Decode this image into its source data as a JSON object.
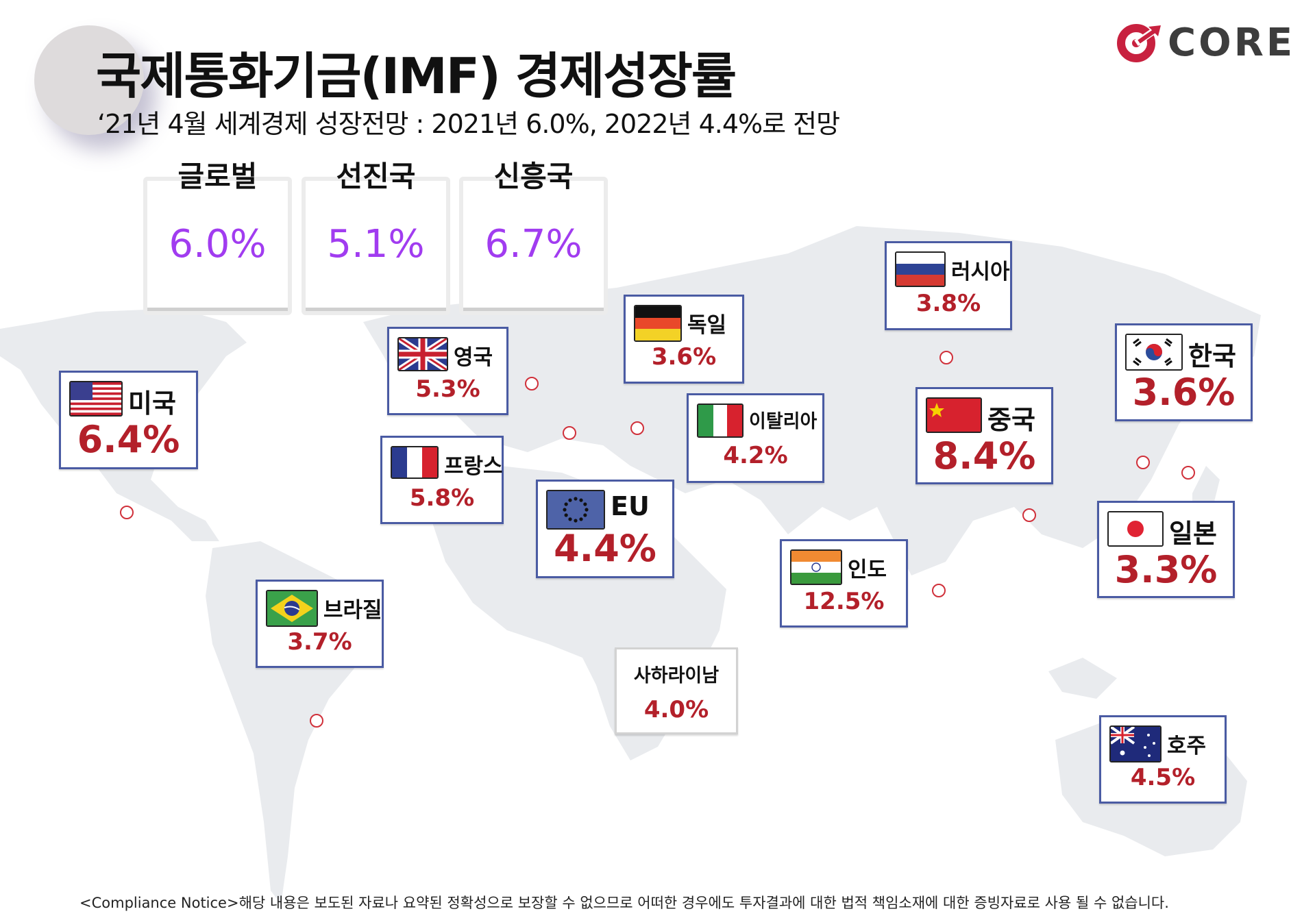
{
  "header": {
    "title": "국제통화기금(IMF) 경제성장률",
    "subtitle": "‘21년 4월 세계경제 성장전망 : 2021년 6.0%, 2022년 4.4%로  전망",
    "logo_text": "CORE"
  },
  "summary": [
    {
      "label": "글로벌",
      "value": "6.0%"
    },
    {
      "label": "선진국",
      "value": "5.1%"
    },
    {
      "label": "신흥국",
      "value": "6.7%"
    }
  ],
  "countries": [
    {
      "id": "usa",
      "name": "미국",
      "value": "6.4%",
      "flag": "usa-flag-icon"
    },
    {
      "id": "uk",
      "name": "영국",
      "value": "5.3%",
      "flag": "uk-flag-icon"
    },
    {
      "id": "france",
      "name": "프랑스",
      "value": "5.8%",
      "flag": "france-flag-icon"
    },
    {
      "id": "germany",
      "name": "독일",
      "value": "3.6%",
      "flag": "germany-flag-icon"
    },
    {
      "id": "italy",
      "name": "이탈리아",
      "value": "4.2%",
      "flag": "italy-flag-icon"
    },
    {
      "id": "eu",
      "name": "EU",
      "value": "4.4%",
      "flag": "eu-flag-icon"
    },
    {
      "id": "russia",
      "name": "러시아",
      "value": "3.8%",
      "flag": "russia-flag-icon"
    },
    {
      "id": "china",
      "name": "중국",
      "value": "8.4%",
      "flag": "china-flag-icon"
    },
    {
      "id": "korea",
      "name": "한국",
      "value": "3.6%",
      "flag": "korea-flag-icon"
    },
    {
      "id": "japan",
      "name": "일본",
      "value": "3.3%",
      "flag": "japan-flag-icon"
    },
    {
      "id": "india",
      "name": "인도",
      "value": "12.5%",
      "flag": "india-flag-icon"
    },
    {
      "id": "brazil",
      "name": "브라질",
      "value": "3.7%",
      "flag": "brazil-flag-icon"
    },
    {
      "id": "ssa",
      "name": "사하라이남",
      "value": "4.0%",
      "flag": null
    },
    {
      "id": "australia",
      "name": "호주",
      "value": "4.5%",
      "flag": "australia-flag-icon"
    }
  ],
  "footer": "<Compliance Notice>해당 내용은 보도된 자료나 요약된 정확성으로 보장할 수 없으므로 어떠한 경우에도 투자결과에 대한 법적 책임소재에 대한 증빙자료로 사용 될 수 없습니다.",
  "colors": {
    "accent_purple": "#a13cf0",
    "value_red": "#b3202a",
    "box_border": "#4a5ba3",
    "map_gray": "#e9ebee",
    "logo_red": "#c8213f"
  }
}
